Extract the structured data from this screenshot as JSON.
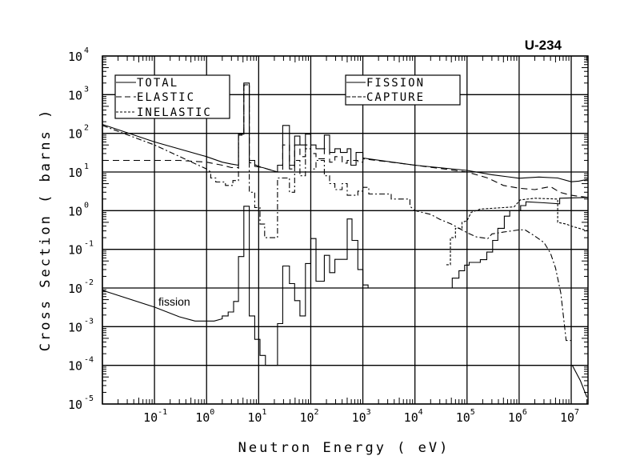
{
  "chart_data": {
    "type": "line",
    "title": "U-234",
    "xlabel": "Neutron Energy ( eV)",
    "ylabel": "Cross Section ( barns )",
    "xscale": "log",
    "yscale": "log",
    "xlim": [
      0.01,
      21000000
    ],
    "ylim": [
      1e-05,
      10000
    ],
    "grid": true,
    "x_ticks": [
      {
        "base": "10",
        "exp": "-1"
      },
      {
        "base": "10",
        "exp": "0"
      },
      {
        "base": "10",
        "exp": "1"
      },
      {
        "base": "10",
        "exp": "2"
      },
      {
        "base": "10",
        "exp": "3"
      },
      {
        "base": "10",
        "exp": "4"
      },
      {
        "base": "10",
        "exp": "5"
      },
      {
        "base": "10",
        "exp": "6"
      },
      {
        "base": "10",
        "exp": "7"
      }
    ],
    "y_ticks": [
      {
        "base": "10",
        "exp": "-5"
      },
      {
        "base": "10",
        "exp": "-4"
      },
      {
        "base": "10",
        "exp": "-3"
      },
      {
        "base": "10",
        "exp": "-2"
      },
      {
        "base": "10",
        "exp": "-1"
      },
      {
        "base": "10",
        "exp": "0"
      },
      {
        "base": "10",
        "exp": "1"
      },
      {
        "base": "10",
        "exp": "2"
      },
      {
        "base": "10",
        "exp": "3"
      },
      {
        "base": "10",
        "exp": "4"
      }
    ],
    "annotation": "fission",
    "legends": [
      {
        "placement": "top-left",
        "entries": [
          "TOTAL",
          "ELASTIC",
          "INELASTIC"
        ]
      },
      {
        "placement": "top-center",
        "entries": [
          "FISSION",
          "CAPTURE"
        ]
      }
    ],
    "series": [
      {
        "name": "TOTAL",
        "style": "solid",
        "points": [
          [
            0.01,
            170
          ],
          [
            0.1,
            60
          ],
          [
            1,
            25
          ],
          [
            2,
            18
          ],
          [
            3,
            16
          ],
          [
            4.1,
            15
          ],
          [
            4.1,
            95
          ],
          [
            5.2,
            95
          ],
          [
            5.2,
            2000
          ],
          [
            6.6,
            2000
          ],
          [
            6.6,
            20
          ],
          [
            8.4,
            20
          ],
          [
            8.4,
            14
          ],
          [
            12,
            13
          ],
          [
            18,
            11
          ],
          [
            23,
            10
          ],
          [
            23,
            15
          ],
          [
            29,
            15
          ],
          [
            29,
            160
          ],
          [
            39,
            160
          ],
          [
            39,
            15
          ],
          [
            49,
            15
          ],
          [
            49,
            85
          ],
          [
            62,
            85
          ],
          [
            62,
            50
          ],
          [
            79,
            50
          ],
          [
            79,
            95
          ],
          [
            100,
            95
          ],
          [
            100,
            50
          ],
          [
            126,
            50
          ],
          [
            126,
            40
          ],
          [
            182,
            40
          ],
          [
            182,
            90
          ],
          [
            230,
            90
          ],
          [
            230,
            32
          ],
          [
            290,
            32
          ],
          [
            290,
            40
          ],
          [
            370,
            40
          ],
          [
            370,
            32
          ],
          [
            500,
            32
          ],
          [
            500,
            40
          ],
          [
            590,
            40
          ],
          [
            590,
            15
          ],
          [
            740,
            15
          ],
          [
            740,
            32
          ],
          [
            1000,
            32
          ],
          [
            1000,
            23
          ],
          [
            10000,
            15
          ],
          [
            100000,
            11
          ],
          [
            300000,
            8.5
          ],
          [
            1000000,
            6.9
          ],
          [
            2400000,
            7.4
          ],
          [
            5500000,
            7
          ],
          [
            10000000,
            5.6
          ],
          [
            14000000,
            5.8
          ],
          [
            21000000,
            6.5
          ]
        ]
      },
      {
        "name": "ELASTIC",
        "style": "dashed",
        "points": [
          [
            0.01,
            20
          ],
          [
            0.3,
            20
          ],
          [
            1,
            18
          ],
          [
            2,
            15
          ],
          [
            3,
            13
          ],
          [
            4.1,
            13
          ],
          [
            4.1,
            90
          ],
          [
            5.2,
            90
          ],
          [
            5.2,
            1700
          ],
          [
            6.6,
            1700
          ],
          [
            6.6,
            18
          ],
          [
            10,
            14
          ],
          [
            18,
            11
          ],
          [
            23,
            10
          ],
          [
            29,
            10
          ],
          [
            29,
            50
          ],
          [
            39,
            50
          ],
          [
            39,
            12
          ],
          [
            49,
            12
          ],
          [
            49,
            50
          ],
          [
            62,
            50
          ],
          [
            62,
            25
          ],
          [
            79,
            25
          ],
          [
            79,
            50
          ],
          [
            100,
            50
          ],
          [
            100,
            30
          ],
          [
            126,
            30
          ],
          [
            126,
            22
          ],
          [
            182,
            22
          ],
          [
            182,
            40
          ],
          [
            230,
            40
          ],
          [
            230,
            18
          ],
          [
            290,
            18
          ],
          [
            290,
            25
          ],
          [
            400,
            25
          ],
          [
            400,
            17
          ],
          [
            500,
            17
          ],
          [
            500,
            20
          ],
          [
            800,
            20
          ],
          [
            800,
            18
          ],
          [
            1000,
            18
          ],
          [
            1000,
            22
          ],
          [
            10000,
            15
          ],
          [
            100000,
            10
          ],
          [
            250000,
            7
          ],
          [
            500000,
            4.5
          ],
          [
            1000000,
            3.8
          ],
          [
            2000000,
            3.5
          ],
          [
            4000000,
            4.2
          ],
          [
            6000000,
            3
          ],
          [
            10000000,
            2.5
          ],
          [
            21000000,
            2.2
          ]
        ]
      },
      {
        "name": "INELASTIC",
        "style": "dotted",
        "points": [
          [
            40000,
            0.04
          ],
          [
            48000,
            0.04
          ],
          [
            48000,
            0.2
          ],
          [
            60000,
            0.2
          ],
          [
            60000,
            0.35
          ],
          [
            80000,
            0.35
          ],
          [
            80000,
            0.5
          ],
          [
            100000,
            0.55
          ],
          [
            120000,
            0.9
          ],
          [
            180000,
            1.1
          ],
          [
            500000,
            1.2
          ],
          [
            800000,
            1.25
          ],
          [
            1050000,
            1.9
          ],
          [
            2000000,
            2.1
          ],
          [
            5500000,
            2
          ],
          [
            5500000,
            0.5
          ],
          [
            8000000,
            0.45
          ],
          [
            10000000,
            0.4
          ],
          [
            21000000,
            0.3
          ]
        ]
      },
      {
        "name": "FISSION",
        "style": "solid",
        "points": [
          [
            0.01,
            0.0087
          ],
          [
            0.1,
            0.0032
          ],
          [
            0.3,
            0.0018
          ],
          [
            0.6,
            0.0014
          ],
          [
            1.4,
            0.0014
          ],
          [
            2,
            0.0016
          ],
          [
            2,
            0.0019
          ],
          [
            2.6,
            0.0019
          ],
          [
            2.6,
            0.0024
          ],
          [
            3.3,
            0.0024
          ],
          [
            3.3,
            0.0045
          ],
          [
            4.1,
            0.0045
          ],
          [
            4.1,
            0.065
          ],
          [
            5.2,
            0.065
          ],
          [
            5.2,
            1.3
          ],
          [
            6.6,
            1.3
          ],
          [
            6.6,
            0.0019
          ],
          [
            8.4,
            0.0019
          ],
          [
            8.4,
            0.00047
          ],
          [
            10.6,
            0.00047
          ],
          [
            10.6,
            0.00018
          ],
          [
            13.5,
            0.00018
          ],
          [
            13.5,
            0.0001
          ],
          [
            23,
            0.0001
          ],
          [
            23,
            0.0012
          ],
          [
            29,
            0.0012
          ],
          [
            29,
            0.037
          ],
          [
            39,
            0.037
          ],
          [
            39,
            0.013
          ],
          [
            49,
            0.013
          ],
          [
            49,
            0.0047
          ],
          [
            62,
            0.0047
          ],
          [
            62,
            0.0019
          ],
          [
            79,
            0.0019
          ],
          [
            79,
            0.043
          ],
          [
            100,
            0.043
          ],
          [
            100,
            0.19
          ],
          [
            126,
            0.19
          ],
          [
            126,
            0.015
          ],
          [
            182,
            0.015
          ],
          [
            182,
            0.07
          ],
          [
            230,
            0.07
          ],
          [
            230,
            0.025
          ],
          [
            290,
            0.025
          ],
          [
            290,
            0.055
          ],
          [
            500,
            0.055
          ],
          [
            500,
            0.61
          ],
          [
            620,
            0.61
          ],
          [
            620,
            0.17
          ],
          [
            800,
            0.17
          ],
          [
            800,
            0.03
          ],
          [
            1000,
            0.03
          ],
          [
            1000,
            0.012
          ],
          [
            1260,
            0.012
          ],
          [
            1260,
            0.01
          ],
          [
            52000,
            0.01
          ],
          [
            52000,
            0.018
          ],
          [
            70000,
            0.018
          ],
          [
            70000,
            0.028
          ],
          [
            90000,
            0.028
          ],
          [
            90000,
            0.039
          ],
          [
            110000,
            0.039
          ],
          [
            110000,
            0.046
          ],
          [
            180000,
            0.046
          ],
          [
            180000,
            0.054
          ],
          [
            240000,
            0.054
          ],
          [
            240000,
            0.085
          ],
          [
            310000,
            0.085
          ],
          [
            310000,
            0.17
          ],
          [
            390000,
            0.17
          ],
          [
            390000,
            0.35
          ],
          [
            520000,
            0.35
          ],
          [
            520000,
            0.72
          ],
          [
            660000,
            0.72
          ],
          [
            660000,
            1.0
          ],
          [
            1070000,
            1.0
          ],
          [
            1070000,
            1.35
          ],
          [
            1350000,
            1.35
          ],
          [
            1350000,
            1.7
          ],
          [
            3000000,
            1.6
          ],
          [
            6000000,
            1.5
          ],
          [
            6000000,
            2.1
          ],
          [
            21000000,
            2.2
          ]
        ]
      },
      {
        "name": "CAPTURE",
        "style": "dashdot",
        "points": [
          [
            0.01,
            160
          ],
          [
            0.1,
            50
          ],
          [
            1,
            12
          ],
          [
            1.2,
            10
          ],
          [
            1.2,
            7
          ],
          [
            1.5,
            7
          ],
          [
            1.5,
            5.5
          ],
          [
            2.3,
            5.5
          ],
          [
            2.3,
            4.5
          ],
          [
            3.2,
            4.5
          ],
          [
            3.2,
            6
          ],
          [
            4.1,
            6
          ],
          [
            4.1,
            90
          ],
          [
            5.2,
            90
          ],
          [
            5.2,
            1800
          ],
          [
            6.6,
            1800
          ],
          [
            6.6,
            3
          ],
          [
            8.4,
            3
          ],
          [
            8.4,
            1.2
          ],
          [
            10.6,
            1.2
          ],
          [
            10.6,
            0.45
          ],
          [
            13,
            0.45
          ],
          [
            13,
            0.2
          ],
          [
            23,
            0.2
          ],
          [
            23,
            7
          ],
          [
            39,
            7
          ],
          [
            39,
            3
          ],
          [
            49,
            3
          ],
          [
            49,
            20
          ],
          [
            62,
            20
          ],
          [
            62,
            8
          ],
          [
            79,
            8
          ],
          [
            79,
            40
          ],
          [
            100,
            40
          ],
          [
            100,
            12
          ],
          [
            126,
            12
          ],
          [
            126,
            20
          ],
          [
            182,
            20
          ],
          [
            182,
            8
          ],
          [
            230,
            8
          ],
          [
            230,
            5
          ],
          [
            290,
            5
          ],
          [
            290,
            3.5
          ],
          [
            400,
            3.5
          ],
          [
            400,
            5
          ],
          [
            500,
            5
          ],
          [
            500,
            2.5
          ],
          [
            800,
            2.5
          ],
          [
            800,
            3.2
          ],
          [
            1000,
            3.2
          ],
          [
            1000,
            4
          ],
          [
            1300,
            4
          ],
          [
            1300,
            2.7
          ],
          [
            3500,
            2.7
          ],
          [
            3500,
            2.0
          ],
          [
            8000,
            2.0
          ],
          [
            8000,
            1.3
          ],
          [
            10000,
            1.0
          ],
          [
            20000,
            0.8
          ],
          [
            30000,
            0.6
          ],
          [
            50000,
            0.45
          ],
          [
            70000,
            0.35
          ],
          [
            100000,
            0.27
          ],
          [
            150000,
            0.21
          ],
          [
            250000,
            0.19
          ],
          [
            300000,
            0.25
          ],
          [
            500000,
            0.28
          ],
          [
            1000000,
            0.32
          ],
          [
            1300000,
            0.32
          ],
          [
            2000000,
            0.22
          ],
          [
            3000000,
            0.15
          ],
          [
            4000000,
            0.08
          ],
          [
            5000000,
            0.033
          ],
          [
            6300000,
            0.0074
          ],
          [
            8000000,
            0.00044
          ],
          [
            10000000,
            0.00044
          ]
        ]
      },
      {
        "name": "CAPTURE-tail",
        "style": "solid",
        "points": [
          [
            10500000,
            0.0001
          ],
          [
            15000000,
            4e-05
          ],
          [
            20000000,
            1.5e-05
          ]
        ]
      }
    ]
  }
}
